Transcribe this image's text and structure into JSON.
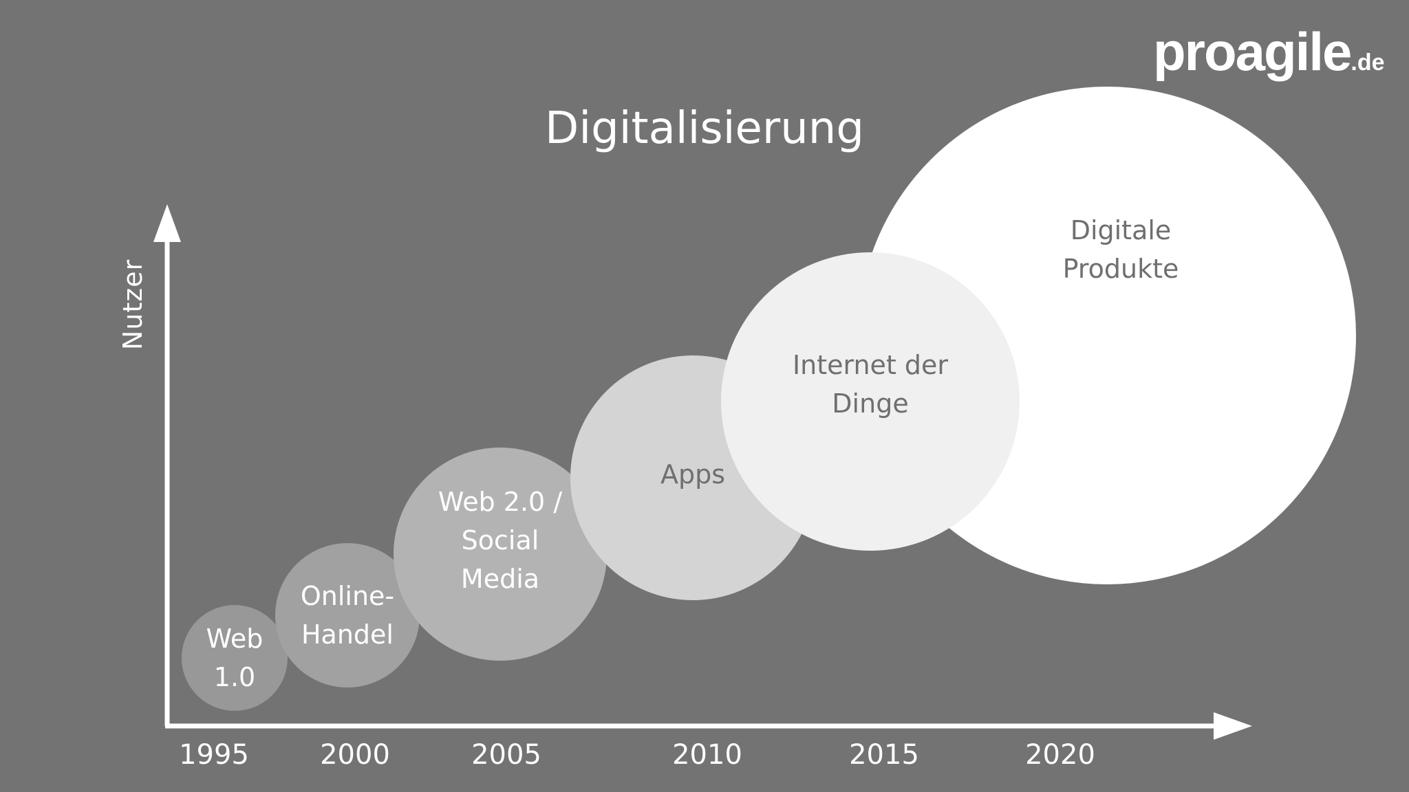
{
  "brand": {
    "name": "proagile",
    "tld": ".de"
  },
  "title": "Digitalisierung",
  "y_axis_label": "Nutzer",
  "years": [
    "1995",
    "2000",
    "2005",
    "2010",
    "2015",
    "2020"
  ],
  "stages": [
    {
      "label": "Web\n1.0",
      "fill": "#989898",
      "text_color": "#ffffff"
    },
    {
      "label": "Online-\nHandel",
      "fill": "#a1a1a1",
      "text_color": "#ffffff"
    },
    {
      "label": "Web 2.0 /\nSocial\nMedia",
      "fill": "#b3b3b3",
      "text_color": "#ffffff"
    },
    {
      "label": "Apps",
      "fill": "#d4d4d4",
      "text_color": "#6f6f6f"
    },
    {
      "label": "Digitale\nProdukte",
      "fill": "#ffffff",
      "text_color": "#6f6f6f"
    },
    {
      "label": "Internet der\nDinge",
      "fill": "#f0f0f0",
      "text_color": "#6f6f6f"
    }
  ]
}
